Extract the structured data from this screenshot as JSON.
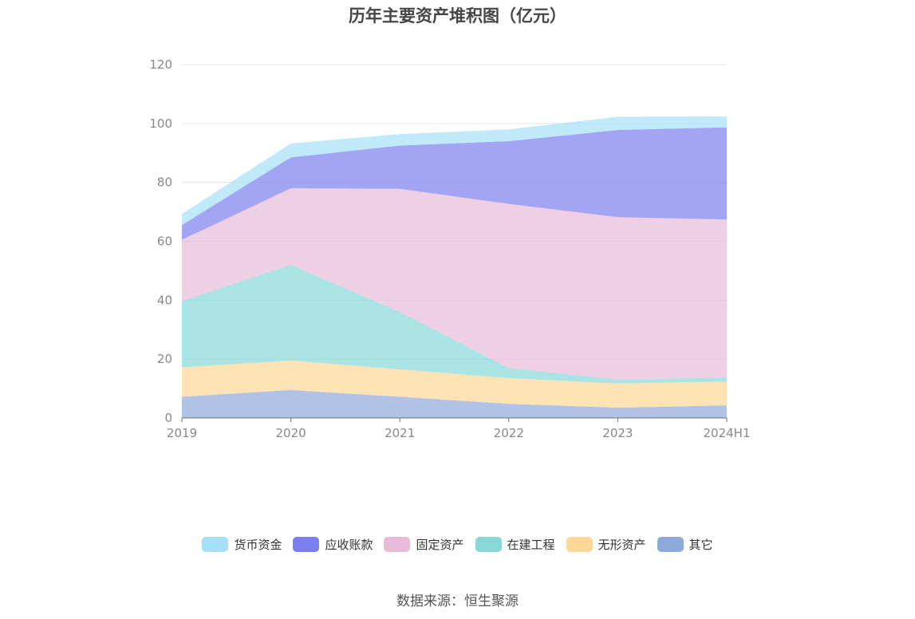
{
  "chart_data": {
    "type": "area",
    "stacked": true,
    "title": "历年主要资产堆积图（亿元）",
    "categories": [
      "2019",
      "2020",
      "2021",
      "2022",
      "2023",
      "2024H1"
    ],
    "ylim": [
      0,
      120
    ],
    "yticks": [
      0,
      20,
      40,
      60,
      80,
      100,
      120
    ],
    "grid": true,
    "legend_position": "bottom",
    "series": [
      {
        "name": "其它",
        "color": "#8eaadb",
        "values": [
          7.2,
          9.5,
          7.2,
          4.8,
          3.5,
          4.3
        ]
      },
      {
        "name": "无形资产",
        "color": "#fdd796",
        "values": [
          10.0,
          10.0,
          9.3,
          8.7,
          8.2,
          8.1
        ]
      },
      {
        "name": "在建工程",
        "color": "#88d8d8",
        "values": [
          22.5,
          32.5,
          19.5,
          3.5,
          1.3,
          1.4
        ]
      },
      {
        "name": "固定资产",
        "color": "#e8bbd9",
        "values": [
          20.8,
          26.0,
          41.8,
          55.7,
          55.2,
          53.6
        ]
      },
      {
        "name": "应收账款",
        "color": "#7b7ff0",
        "values": [
          5.0,
          10.5,
          14.7,
          21.3,
          29.6,
          31.3
        ]
      },
      {
        "name": "货币资金",
        "color": "#a5dff8",
        "values": [
          3.8,
          4.7,
          3.9,
          4.0,
          4.5,
          3.7
        ]
      }
    ],
    "legend_order": [
      "货币资金",
      "应收账款",
      "固定资产",
      "在建工程",
      "无形资产",
      "其它"
    ]
  },
  "source": "数据来源：恒生聚源"
}
